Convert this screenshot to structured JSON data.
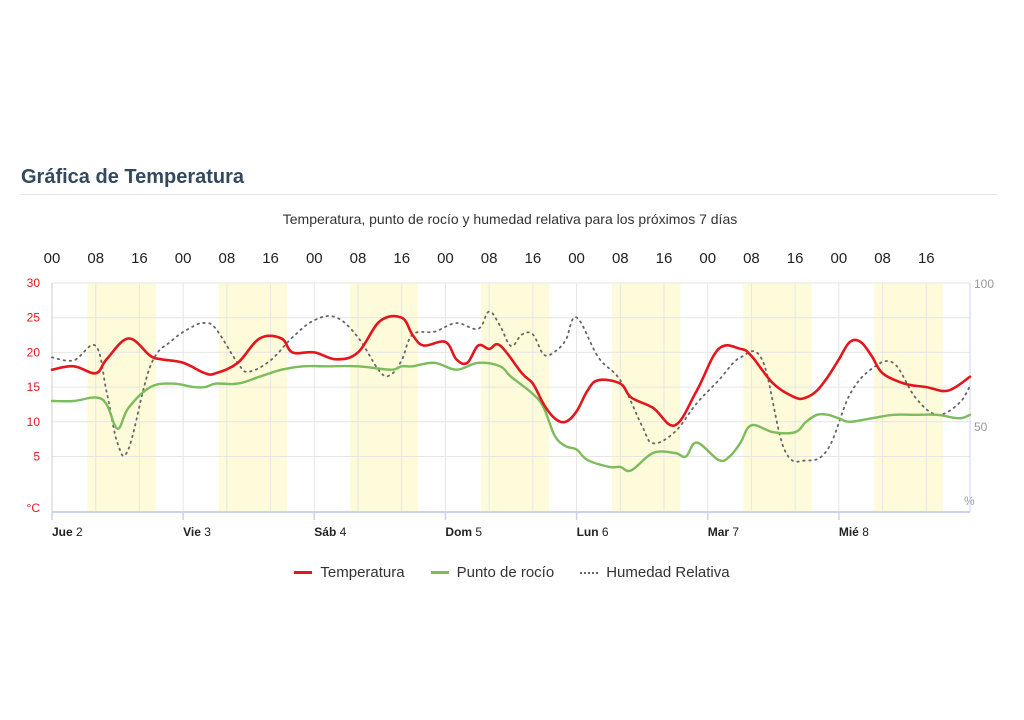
{
  "page": {
    "section_title": "Gráfica de Temperatura"
  },
  "colors": {
    "temperature": "#e3161d",
    "dew_point": "#7cbc5c",
    "humidity": "#666666",
    "daylight_band": "#fdfbd9",
    "left_axis_text": "#e3161d",
    "grid": "#e6e6e6",
    "axis": "#c9d3f0"
  },
  "chart_data": {
    "type": "line",
    "title": "Temperatura, punto de rocío y humedad relativa para los próximos 7 días",
    "x_unit": "hours from Jue 2 00:00",
    "x_range": [
      0,
      168
    ],
    "top_hour_ticks": [
      {
        "hour": 0,
        "label": "00"
      },
      {
        "hour": 8,
        "label": "08"
      },
      {
        "hour": 16,
        "label": "16"
      },
      {
        "hour": 24,
        "label": "00"
      },
      {
        "hour": 32,
        "label": "08"
      },
      {
        "hour": 40,
        "label": "16"
      },
      {
        "hour": 48,
        "label": "00"
      },
      {
        "hour": 56,
        "label": "08"
      },
      {
        "hour": 64,
        "label": "16"
      },
      {
        "hour": 72,
        "label": "00"
      },
      {
        "hour": 80,
        "label": "08"
      },
      {
        "hour": 88,
        "label": "16"
      },
      {
        "hour": 96,
        "label": "00"
      },
      {
        "hour": 104,
        "label": "08"
      },
      {
        "hour": 112,
        "label": "16"
      },
      {
        "hour": 120,
        "label": "00"
      },
      {
        "hour": 128,
        "label": "08"
      },
      {
        "hour": 136,
        "label": "16"
      },
      {
        "hour": 144,
        "label": "00"
      },
      {
        "hour": 152,
        "label": "08"
      },
      {
        "hour": 160,
        "label": "16"
      }
    ],
    "day_ticks": [
      {
        "hour": 0,
        "label": "Jue 2"
      },
      {
        "hour": 24,
        "label": "Vie 3"
      },
      {
        "hour": 48,
        "label": "Sáb 4"
      },
      {
        "hour": 72,
        "label": "Dom 5"
      },
      {
        "hour": 96,
        "label": "Lun 6"
      },
      {
        "hour": 120,
        "label": "Mar 7"
      },
      {
        "hour": 144,
        "label": "Mié 8"
      }
    ],
    "left_axis": {
      "unit": "°C",
      "range": [
        -3,
        30
      ],
      "ticks": [
        5,
        10,
        15,
        20,
        25,
        30
      ]
    },
    "right_axis": {
      "unit": "%",
      "range": [
        20,
        100
      ],
      "ticks": [
        50,
        100
      ]
    },
    "daylight_bands": [
      [
        6.5,
        19
      ],
      [
        30.5,
        43
      ],
      [
        54.5,
        67
      ],
      [
        78.5,
        91
      ],
      [
        102.5,
        115
      ],
      [
        126.5,
        139
      ],
      [
        150.5,
        163
      ]
    ],
    "series": [
      {
        "name": "Temperatura",
        "axis": "left",
        "style": "solid",
        "x": [
          0,
          4,
          8,
          10,
          14,
          18,
          20,
          24,
          28,
          30,
          34,
          38,
          42,
          44,
          48,
          52,
          56,
          60,
          64,
          66,
          68,
          72,
          74,
          76,
          78,
          80,
          82,
          86,
          88,
          90,
          92,
          94,
          96,
          98,
          100,
          104,
          106,
          110,
          114,
          118,
          122,
          126,
          128,
          132,
          136,
          138,
          140,
          142,
          144,
          146,
          148,
          150,
          152,
          156,
          160,
          164,
          168
        ],
        "values": [
          17.5,
          18,
          17,
          19,
          22,
          19.5,
          19,
          18.5,
          17,
          17,
          18.5,
          22,
          22,
          20,
          20,
          19,
          20,
          24.5,
          25,
          22.5,
          21,
          21.5,
          19,
          18.5,
          21,
          20.5,
          21,
          17,
          15.5,
          12.5,
          10.5,
          10,
          11.5,
          14.5,
          16,
          15.5,
          13.5,
          12,
          9.5,
          14.5,
          20.5,
          20.5,
          19.5,
          15.5,
          13.5,
          13.5,
          14.5,
          16.5,
          19,
          21.5,
          21.5,
          19.5,
          17,
          15.5,
          15,
          14.5,
          16.5
        ]
      },
      {
        "name": "Punto de rocío",
        "axis": "left",
        "style": "solid",
        "x": [
          0,
          4,
          8,
          10,
          12,
          14,
          18,
          22,
          26,
          28,
          30,
          34,
          38,
          42,
          46,
          50,
          56,
          62,
          64,
          66,
          70,
          74,
          78,
          82,
          84,
          88,
          90,
          92,
          94,
          96,
          98,
          102,
          104,
          106,
          110,
          114,
          116,
          118,
          122,
          124,
          126,
          128,
          132,
          136,
          138,
          140,
          142,
          144,
          146,
          150,
          154,
          158,
          162,
          166,
          168
        ],
        "values": [
          13,
          13,
          13.5,
          12.5,
          9,
          12,
          15,
          15.5,
          15,
          15,
          15.5,
          15.5,
          16.5,
          17.5,
          18,
          18,
          18,
          17.5,
          18,
          18,
          18.5,
          17.5,
          18.5,
          18,
          16.5,
          14,
          12,
          8,
          6.5,
          6,
          4.5,
          3.5,
          3.5,
          3,
          5.5,
          5.5,
          5,
          7,
          4.5,
          5,
          7,
          9.5,
          8.5,
          8.5,
          10,
          11,
          11,
          10.5,
          10,
          10.5,
          11,
          11,
          11,
          10.5,
          11
        ]
      },
      {
        "name": "Humedad Relativa",
        "axis": "right",
        "style": "dotted",
        "x": [
          0,
          4,
          8,
          10,
          12,
          14,
          18,
          22,
          26,
          28,
          30,
          34,
          36,
          40,
          44,
          48,
          52,
          56,
          60,
          62,
          64,
          66,
          70,
          74,
          78,
          80,
          82,
          84,
          86,
          88,
          90,
          92,
          94,
          96,
          100,
          104,
          108,
          110,
          114,
          118,
          122,
          126,
          130,
          134,
          138,
          142,
          146,
          150,
          154,
          158,
          162,
          166,
          168
        ],
        "values": [
          74,
          73,
          78,
          62,
          44,
          42,
          71,
          80,
          85,
          86,
          84,
          72,
          69,
          73,
          81,
          87,
          88,
          81,
          69,
          68,
          73,
          82,
          83,
          86,
          84,
          90,
          85,
          78,
          82,
          82,
          75,
          76,
          80,
          88,
          74,
          66,
          50,
          44,
          48,
          58,
          66,
          74,
          73,
          42,
          38,
          42,
          61,
          70,
          72,
          60,
          54,
          58,
          64
        ]
      }
    ]
  }
}
